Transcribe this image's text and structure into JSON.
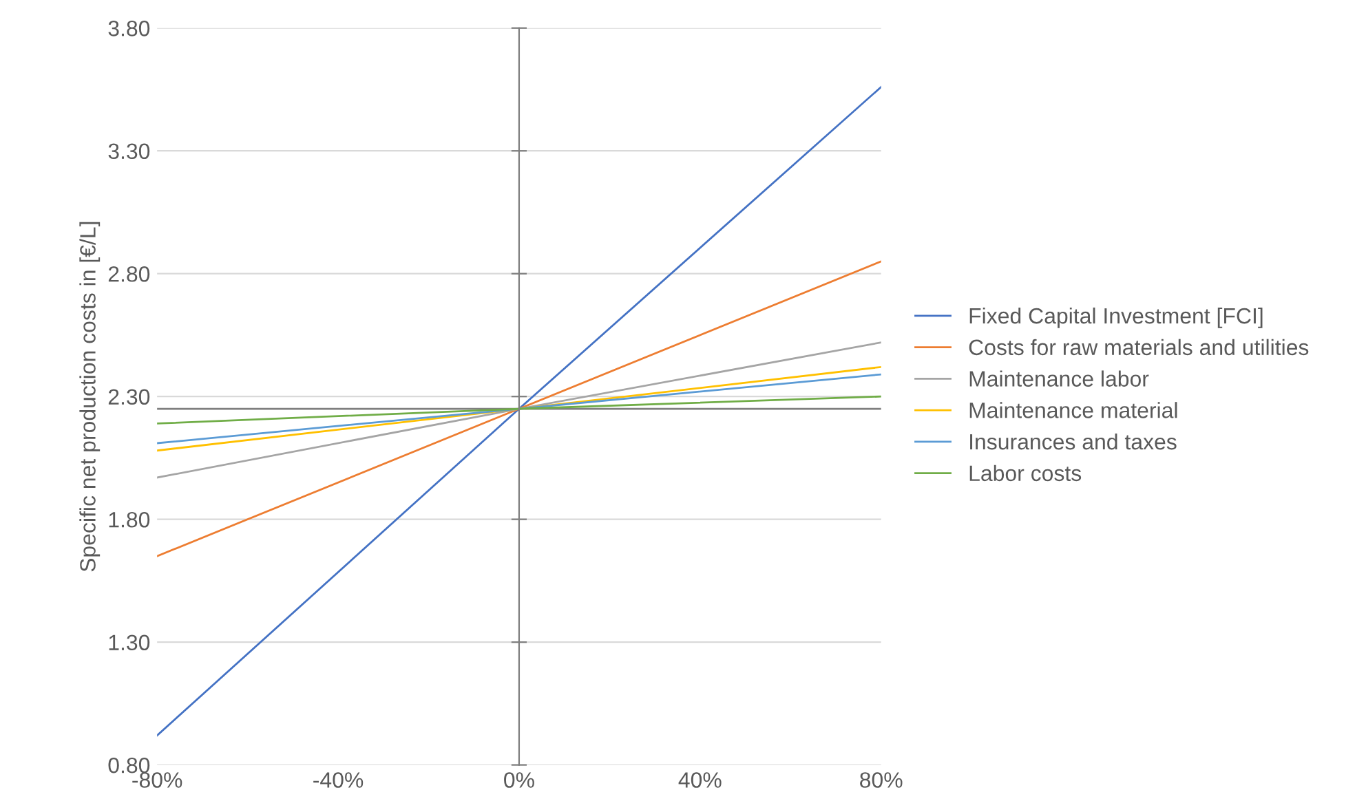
{
  "chart_data": {
    "type": "line",
    "ylabel": "Specific net production costs in [€/L]",
    "x": [
      -80,
      0,
      80
    ],
    "series": [
      {
        "name": "Fixed Capital Investment [FCI]",
        "color": "#4472c4",
        "values": [
          0.92,
          2.25,
          3.56
        ]
      },
      {
        "name": "Costs for raw materials and utilities",
        "color": "#ed7d31",
        "values": [
          1.65,
          2.25,
          2.85
        ]
      },
      {
        "name": "Maintenance labor",
        "color": "#a5a5a5",
        "values": [
          1.97,
          2.25,
          2.52
        ]
      },
      {
        "name": "Maintenance material",
        "color": "#ffc000",
        "values": [
          2.08,
          2.25,
          2.42
        ]
      },
      {
        "name": "Insurances and taxes",
        "color": "#5b9bd5",
        "values": [
          2.11,
          2.25,
          2.39
        ]
      },
      {
        "name": "Labor costs",
        "color": "#70ad47",
        "values": [
          2.19,
          2.25,
          2.3
        ]
      }
    ],
    "xlim": [
      -80,
      80
    ],
    "xticks": [
      {
        "value": -80,
        "label": "-80%"
      },
      {
        "value": -40,
        "label": "-40%"
      },
      {
        "value": 0,
        "label": "0%"
      },
      {
        "value": 40,
        "label": "40%"
      },
      {
        "value": 80,
        "label": "80%"
      }
    ],
    "ylim": [
      0.8,
      3.8
    ],
    "yticks": [
      {
        "value": 0.8,
        "label": "0.80"
      },
      {
        "value": 1.3,
        "label": "1.30"
      },
      {
        "value": 1.8,
        "label": "1.80"
      },
      {
        "value": 2.3,
        "label": "2.30"
      },
      {
        "value": 2.8,
        "label": "2.80"
      },
      {
        "value": 3.3,
        "label": "3.30"
      },
      {
        "value": 3.8,
        "label": "3.80"
      }
    ],
    "ref_lines": [
      {
        "axis": "y",
        "value": 2.25,
        "color": "#7f7f7f"
      }
    ],
    "grid": "y",
    "legend": "right",
    "marker": "none",
    "line_style": "solid"
  }
}
